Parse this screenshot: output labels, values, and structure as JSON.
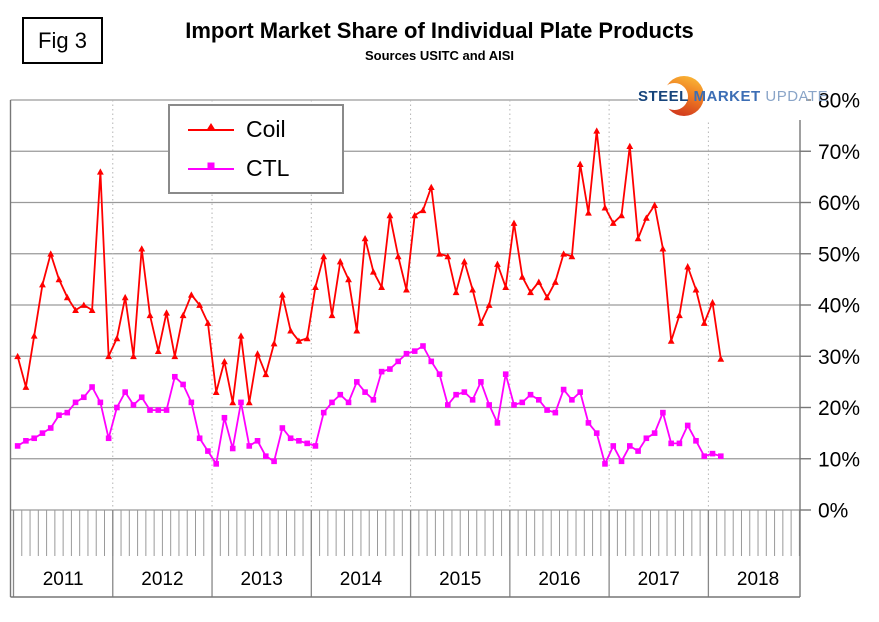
{
  "figure": {
    "fig_label": "Fig 3",
    "title": "Import Market Share of Individual Plate Products",
    "subtitle": "Sources USITC and AISI"
  },
  "logo": {
    "word1": "STEEL",
    "word2": "MARKET",
    "word3": "UPDATE",
    "crescent_top_color": "#f9b234",
    "crescent_bottom_color": "#d43f1e"
  },
  "legend": {
    "items": [
      {
        "label": "Coil",
        "color": "#ff0000",
        "marker": "triangle"
      },
      {
        "label": "CTL",
        "color": "#ff00ff",
        "marker": "square"
      }
    ]
  },
  "chart_data": {
    "type": "line",
    "title": "Import Market Share of Individual Plate Products",
    "subtitle": "Sources USITC and AISI",
    "x_unit": "month",
    "x_start": "2011-01",
    "x_end": "2018-02",
    "year_labels": [
      "2011",
      "2012",
      "2013",
      "2014",
      "2015",
      "2016",
      "2017",
      "2018"
    ],
    "y_tick_labels": [
      "0%",
      "10%",
      "20%",
      "30%",
      "40%",
      "50%",
      "60%",
      "70%",
      "80%"
    ],
    "ylim": [
      0,
      80
    ],
    "grid": {
      "horizontal": true,
      "vertical_year_dotted": true,
      "month_tick_comb": true
    },
    "legend_position": "inside-top-left",
    "series": [
      {
        "name": "Coil",
        "color": "#ff0000",
        "marker": "triangle",
        "values": [
          30,
          24,
          34,
          44,
          50,
          45,
          41.5,
          39,
          40,
          39,
          66,
          30,
          33.5,
          41.5,
          30,
          51,
          38,
          31,
          38.5,
          30,
          38,
          42,
          40,
          36.5,
          23,
          29,
          21,
          34,
          21,
          30.5,
          26.5,
          32.5,
          42,
          35,
          33,
          33.5,
          43.5,
          49.5,
          38,
          48.5,
          45,
          35,
          53,
          46.5,
          43.5,
          57.5,
          49.5,
          43,
          57.5,
          58.5,
          63,
          50,
          49.5,
          42.5,
          48.5,
          43,
          36.5,
          40,
          48,
          43.5,
          56,
          45.5,
          42.5,
          44.5,
          41.5,
          44.5,
          50,
          49.5,
          67.5,
          58,
          74,
          59,
          56,
          57.5,
          71,
          53,
          57,
          59.5,
          51,
          33,
          38,
          47.5,
          43,
          36.5,
          40.5,
          29.5
        ]
      },
      {
        "name": "CTL",
        "color": "#ff00ff",
        "marker": "square",
        "values": [
          12.5,
          13.5,
          14,
          15,
          16,
          18.5,
          19,
          21,
          22,
          24,
          21,
          14,
          20,
          23,
          20.5,
          22,
          19.5,
          19.5,
          19.5,
          26,
          24.5,
          21,
          14,
          11.5,
          9,
          18,
          12,
          21,
          12.5,
          13.5,
          10.5,
          9.5,
          16,
          14,
          13.5,
          13,
          12.5,
          19,
          21,
          22.5,
          21,
          25,
          23,
          21.5,
          27,
          27.5,
          29,
          30.5,
          31,
          32,
          29,
          26.5,
          20.5,
          22.5,
          23,
          21.5,
          25,
          20.5,
          17,
          26.5,
          20.5,
          21,
          22.5,
          21.5,
          19.5,
          19,
          23.5,
          21.5,
          23,
          17,
          15,
          9,
          12.5,
          9.5,
          12.5,
          11.5,
          14,
          15,
          19,
          13,
          13,
          16.5,
          13.5,
          10.5,
          11,
          10.5
        ]
      }
    ]
  }
}
